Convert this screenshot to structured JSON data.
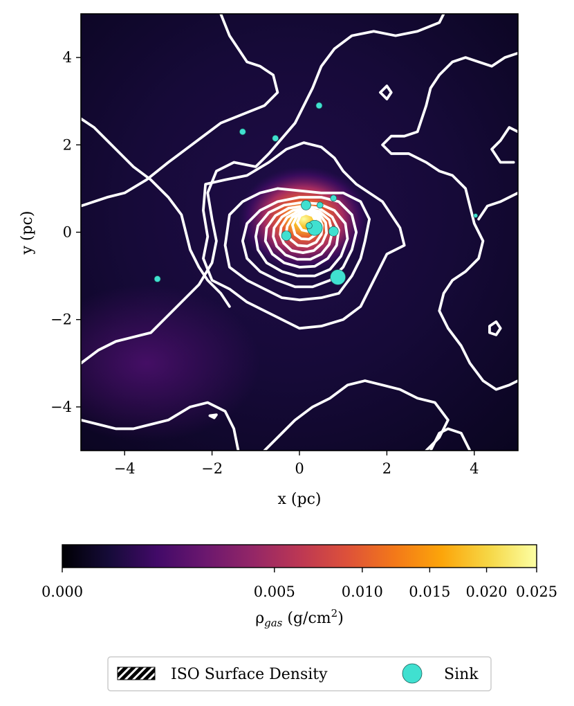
{
  "chart_data": {
    "type": "heatmap",
    "xlabel": "x (pc)",
    "ylabel": "y (pc)",
    "xlim": [
      -5,
      5
    ],
    "ylim": [
      -5,
      5
    ],
    "xticks": [
      -4,
      -2,
      0,
      2,
      4
    ],
    "yticks": [
      -4,
      -2,
      0,
      2,
      4
    ],
    "xtick_labels": [
      "−4",
      "−2",
      "0",
      "2",
      "4"
    ],
    "ytick_labels": [
      "−4",
      "−2",
      "0",
      "2",
      "4"
    ],
    "grid": false,
    "colormap": "inferno",
    "colorbar": {
      "label": "ρgas (g/cm²)",
      "range": [
        0.0,
        0.025
      ],
      "scale": "power",
      "ticks": [
        0.0,
        0.005,
        0.01,
        0.015,
        0.02,
        0.025
      ],
      "tick_labels": [
        "0.000",
        "0.005",
        "0.010",
        "0.015",
        "0.020",
        "0.025"
      ]
    },
    "density_peak": {
      "x": 0.1,
      "y": 0.3,
      "value": 0.025
    },
    "density_secondary": {
      "x": -3.5,
      "y": -3.0
    },
    "contour_color": "#ffffff",
    "sinks": [
      {
        "x": 0.45,
        "y": 2.9,
        "size": "small"
      },
      {
        "x": -1.3,
        "y": 2.3,
        "size": "small"
      },
      {
        "x": -0.55,
        "y": 2.15,
        "size": "small"
      },
      {
        "x": 0.15,
        "y": 0.62,
        "size": "medium"
      },
      {
        "x": 0.47,
        "y": 0.62,
        "size": "small"
      },
      {
        "x": 0.78,
        "y": 0.78,
        "size": "small"
      },
      {
        "x": 0.35,
        "y": 0.1,
        "size": "large"
      },
      {
        "x": 0.22,
        "y": 0.15,
        "size": "small"
      },
      {
        "x": 0.78,
        "y": 0.02,
        "size": "medium"
      },
      {
        "x": -0.3,
        "y": -0.08,
        "size": "medium"
      },
      {
        "x": 0.88,
        "y": -1.03,
        "size": "large"
      },
      {
        "x": -3.25,
        "y": -1.07,
        "size": "small"
      },
      {
        "x": 4.03,
        "y": 0.38,
        "size": "tiny"
      }
    ],
    "sink_color": "#40e0d0",
    "legend": {
      "placement": "bottom",
      "entries": [
        {
          "label": "ISO Surface Density",
          "marker": "hatched-patch"
        },
        {
          "label": "Sink",
          "marker": "circle"
        }
      ]
    }
  }
}
